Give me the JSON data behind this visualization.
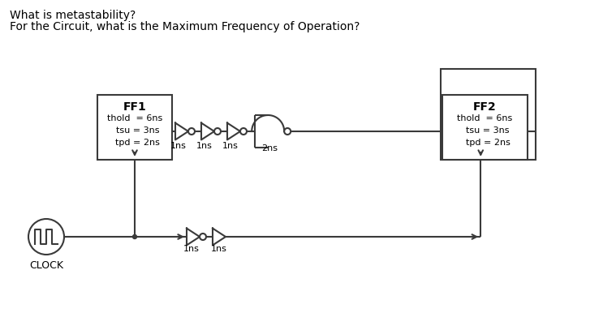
{
  "title1": "What is metastability?",
  "title2": "For the Circuit, what is the Maximum Frequency of Operation?",
  "ff1_label": "FF1",
  "ff1_text": "thold  = 6ns\n  tsu = 3ns\n  tpd = 2ns",
  "ff2_label": "FF2",
  "ff2_text": "thold  = 6ns\n  tsu = 3ns\n  tpd = 2ns",
  "clock_label": "CLOCK",
  "delays": [
    "1ns",
    "1ns",
    "1ns",
    "2ns"
  ],
  "clock_delays": [
    "1ns",
    "1ns"
  ],
  "bg_color": "#ffffff",
  "lc": "#3a3a3a",
  "tc": "#000000",
  "fs": 9,
  "tfs": 10,
  "lw": 1.5
}
